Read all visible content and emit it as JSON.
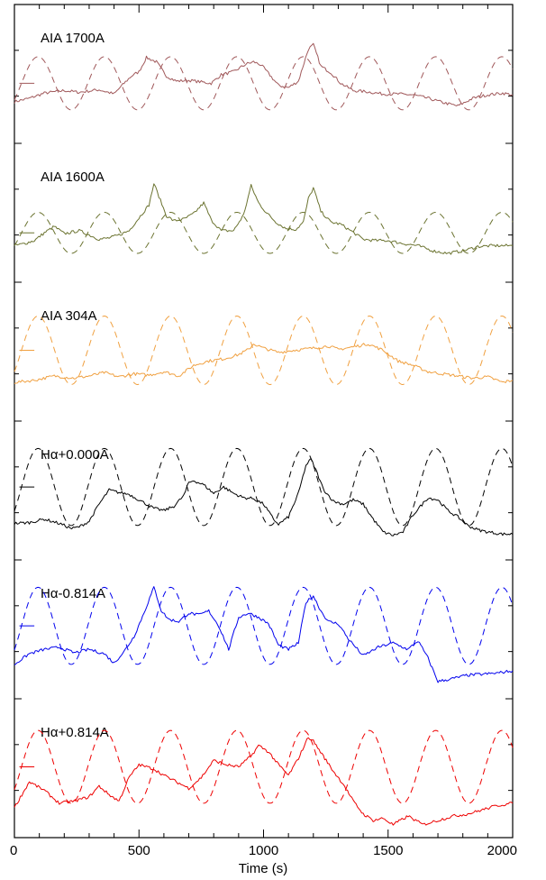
{
  "chart_data": {
    "type": "line",
    "xlabel": "Time (s)",
    "xlim": [
      0,
      2000
    ],
    "xticks": [
      "0",
      "500",
      "1000",
      "1500",
      "2000"
    ],
    "grid": false,
    "legend": "none",
    "panels": [
      {
        "label": "AIA 1700A",
        "color": "#a0585a",
        "series": [
          {
            "style": "solid",
            "x": [
              0,
              60,
              120,
              200,
              260,
              340,
              400,
              440,
              470,
              500,
              530,
              570,
              610,
              650,
              700,
              750,
              790,
              830,
              880,
              930,
              960,
              990,
              1020,
              1060,
              1100,
              1140,
              1180,
              1200,
              1230,
              1270,
              1310,
              1360,
              1420,
              1480,
              1540,
              1600,
              1660,
              1720,
              1780,
              1840,
              1900,
              1960,
              2000
            ],
            "y": [
              0.12,
              0.2,
              0.32,
              0.38,
              0.34,
              0.4,
              0.3,
              0.55,
              0.72,
              0.82,
              1.15,
              1.05,
              0.72,
              0.6,
              0.62,
              0.58,
              0.55,
              0.75,
              0.82,
              1.0,
              1.05,
              0.98,
              0.78,
              0.5,
              0.45,
              0.6,
              1.35,
              1.45,
              0.95,
              0.8,
              0.55,
              0.38,
              0.35,
              0.3,
              0.3,
              0.28,
              0.2,
              0.1,
              0.02,
              0.2,
              0.28,
              0.32,
              0.28
            ]
          },
          {
            "style": "dashed",
            "period": 266,
            "phase": 95,
            "amplitude": 0.62,
            "offset": 0.55
          }
        ]
      },
      {
        "label": "AIA 1600A",
        "color": "#6b7330",
        "series": [
          {
            "style": "solid",
            "x": [
              0,
              40,
              80,
              120,
              160,
              200,
              260,
              300,
              340,
              380,
              420,
              460,
              500,
              540,
              560,
              580,
              610,
              640,
              680,
              720,
              760,
              790,
              830,
              880,
              920,
              950,
              980,
              1010,
              1050,
              1090,
              1130,
              1160,
              1180,
              1200,
              1230,
              1270,
              1310,
              1350,
              1400,
              1450,
              1500,
              1560,
              1620,
              1680,
              1740,
              1800,
              1860,
              1920,
              1980,
              2000
            ],
            "y": [
              0.0,
              0.05,
              0.12,
              0.3,
              0.45,
              0.28,
              0.35,
              0.25,
              0.15,
              0.18,
              0.25,
              0.35,
              0.65,
              0.95,
              1.45,
              1.15,
              0.7,
              0.58,
              0.62,
              0.75,
              1.0,
              0.6,
              0.35,
              0.35,
              0.72,
              1.4,
              1.0,
              0.78,
              0.55,
              0.4,
              0.38,
              0.55,
              1.1,
              1.35,
              0.8,
              0.55,
              0.5,
              0.35,
              0.15,
              0.12,
              0.12,
              0.05,
              0.0,
              -0.12,
              -0.18,
              -0.12,
              -0.02,
              0.0,
              0.0,
              0.0
            ]
          },
          {
            "style": "dashed",
            "period": 266,
            "phase": 95,
            "amplitude": 0.48,
            "offset": 0.3
          }
        ]
      },
      {
        "label": "AIA 304A",
        "color": "#f0a040",
        "series": [
          {
            "style": "solid",
            "x": [
              0,
              80,
              160,
              240,
              300,
              360,
              420,
              480,
              540,
              600,
              660,
              720,
              780,
              840,
              900,
              940,
              960,
              1000,
              1060,
              1120,
              1200,
              1260,
              1300,
              1360,
              1420,
              1480,
              1540,
              1600,
              1660,
              1720,
              1780,
              1840,
              1900,
              1960,
              2000
            ],
            "y": [
              0.05,
              0.1,
              0.2,
              0.15,
              0.2,
              0.28,
              0.18,
              0.25,
              0.22,
              0.3,
              0.2,
              0.45,
              0.55,
              0.6,
              0.7,
              0.82,
              0.95,
              0.85,
              0.75,
              0.8,
              0.85,
              0.9,
              0.82,
              0.88,
              0.95,
              0.8,
              0.55,
              0.45,
              0.3,
              0.25,
              0.2,
              0.15,
              0.18,
              0.05,
              0.1
            ]
          },
          {
            "style": "dashed",
            "period": 266,
            "phase": 95,
            "amplitude": 0.8,
            "offset": 0.8
          }
        ]
      },
      {
        "label": "Hα+0.000A",
        "color": "#000000",
        "series": [
          {
            "style": "solid",
            "x": [
              0,
              60,
              120,
              180,
              230,
              260,
              300,
              340,
              380,
              420,
              460,
              500,
              560,
              600,
              640,
              680,
              700,
              720,
              760,
              800,
              840,
              880,
              920,
              960,
              1000,
              1040,
              1060,
              1100,
              1140,
              1170,
              1190,
              1210,
              1240,
              1280,
              1320,
              1360,
              1400,
              1440,
              1480,
              1520,
              1560,
              1600,
              1660,
              1700,
              1740,
              1780,
              1820,
              1860,
              1900,
              1960,
              2000
            ],
            "y": [
              0.0,
              0.02,
              0.1,
              0.0,
              -0.12,
              -0.08,
              0.05,
              0.45,
              0.78,
              0.72,
              0.68,
              0.55,
              0.35,
              0.3,
              0.4,
              0.65,
              0.95,
              1.0,
              0.9,
              0.7,
              0.85,
              0.7,
              0.6,
              0.58,
              0.45,
              0.1,
              -0.02,
              0.15,
              0.7,
              1.35,
              1.5,
              1.25,
              0.8,
              0.52,
              0.45,
              0.55,
              0.45,
              0.1,
              -0.2,
              -0.28,
              -0.2,
              0.2,
              0.6,
              0.55,
              0.3,
              0.15,
              -0.05,
              -0.15,
              -0.2,
              -0.25,
              -0.25
            ]
          },
          {
            "style": "dashed",
            "period": 266,
            "phase": 95,
            "amplitude": 0.9,
            "offset": 0.85
          }
        ]
      },
      {
        "label": "Hα-0.814A",
        "color": "#0000ee",
        "series": [
          {
            "style": "solid",
            "x": [
              0,
              60,
              120,
              180,
              240,
              300,
              360,
              400,
              440,
              480,
              520,
              560,
              590,
              620,
              660,
              700,
              740,
              780,
              820,
              860,
              900,
              940,
              980,
              1020,
              1060,
              1100,
              1140,
              1170,
              1200,
              1230,
              1260,
              1300,
              1340,
              1400,
              1460,
              1520,
              1580,
              1620,
              1660,
              1700,
              1760,
              1820,
              1880,
              1940,
              2000
            ],
            "y": [
              -0.05,
              0.2,
              0.3,
              0.35,
              0.22,
              0.3,
              0.2,
              -0.02,
              0.25,
              0.6,
              1.15,
              1.75,
              1.2,
              1.0,
              0.95,
              1.15,
              1.1,
              1.2,
              0.85,
              0.3,
              1.05,
              1.15,
              1.05,
              0.9,
              0.4,
              0.3,
              0.45,
              1.4,
              1.55,
              1.2,
              0.95,
              0.9,
              0.55,
              0.15,
              0.35,
              0.45,
              0.3,
              0.5,
              0.1,
              -0.45,
              -0.38,
              -0.3,
              -0.28,
              -0.25,
              -0.2
            ]
          },
          {
            "style": "dashed",
            "period": 266,
            "phase": 95,
            "amplitude": 0.9,
            "offset": 0.85
          }
        ]
      },
      {
        "label": "Hα+0.814A",
        "color": "#ee0000",
        "series": [
          {
            "style": "solid",
            "x": [
              0,
              60,
              120,
              180,
              240,
              300,
              340,
              380,
              420,
              460,
              500,
              560,
              600,
              650,
              700,
              750,
              800,
              850,
              900,
              950,
              980,
              1020,
              1060,
              1100,
              1140,
              1180,
              1200,
              1240,
              1280,
              1320,
              1360,
              1400,
              1440,
              1480,
              1520,
              1580,
              1640,
              1700,
              1760,
              1820,
              1880,
              1940,
              2000
            ],
            "y": [
              -0.15,
              0.45,
              0.25,
              -0.05,
              0.0,
              0.1,
              0.35,
              0.15,
              0.0,
              0.55,
              0.85,
              0.75,
              0.6,
              0.45,
              0.3,
              0.55,
              0.95,
              0.85,
              0.8,
              1.05,
              1.3,
              1.15,
              0.85,
              0.6,
              1.0,
              1.5,
              1.4,
              1.05,
              0.7,
              0.4,
              0.0,
              -0.3,
              -0.45,
              -0.4,
              -0.55,
              -0.35,
              -0.55,
              -0.45,
              -0.35,
              -0.3,
              -0.2,
              -0.1,
              -0.05
            ]
          },
          {
            "style": "dashed",
            "period": 266,
            "phase": 95,
            "amplitude": 0.85,
            "offset": 0.8
          }
        ]
      }
    ]
  }
}
